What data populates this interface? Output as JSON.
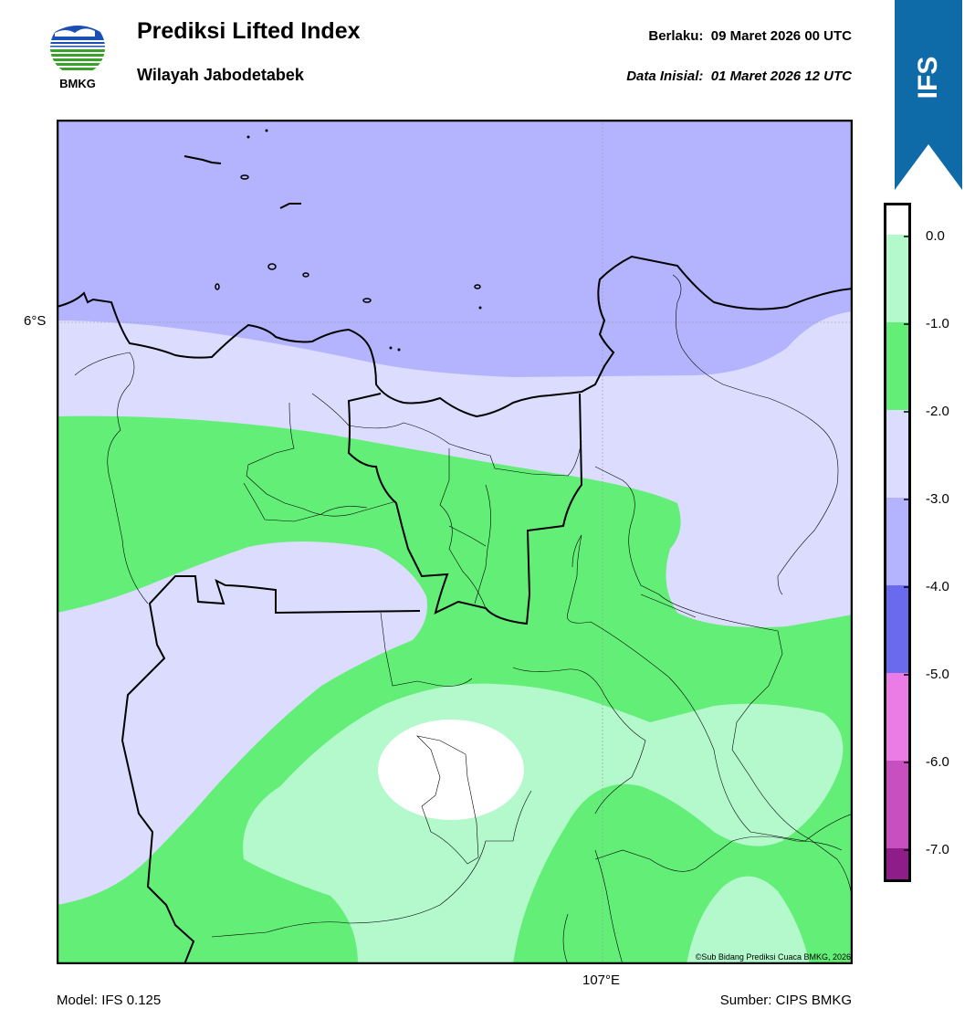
{
  "header": {
    "title": "Prediksi Lifted Index",
    "subtitle": "Wilayah Jabodetabek",
    "valid_label": "Berlaku:",
    "valid_value": "09 Maret 2026 00 UTC",
    "init_label": "Data Inisial:",
    "init_value": "01 Maret 2026 12 UTC"
  },
  "logo": {
    "text": "BMKG",
    "icon": "bmkg-logo-icon"
  },
  "ribbon": {
    "text": "IFS",
    "color": "#0f6aa8"
  },
  "map": {
    "lat_label": "6°S",
    "lon_label": "107°E",
    "copyright": "©Sub Bidang Prediksi Cuaca BMKG, 2026"
  },
  "footer": {
    "model": "Model: IFS 0.125",
    "source": "Sumber: CIPS BMKG"
  },
  "colorbar": {
    "ticks": [
      "0.0",
      "-1.0",
      "-2.0",
      "-3.0",
      "-4.0",
      "-5.0",
      "-6.0",
      "-7.0"
    ],
    "colors": {
      "above_0": "#ffffff",
      "0_to_-1": "#b3f9cc",
      "-1_to_-2": "#63ee77",
      "-2_to_-3": "#dcdcfe",
      "-3_to_-4": "#b3b3fe",
      "-4_to_-5": "#6a6aef",
      "-5_to_-6": "#eb7ce5",
      "-6_to_-7": "#c84fbf",
      "below_-7": "#8e1d8a"
    }
  }
}
